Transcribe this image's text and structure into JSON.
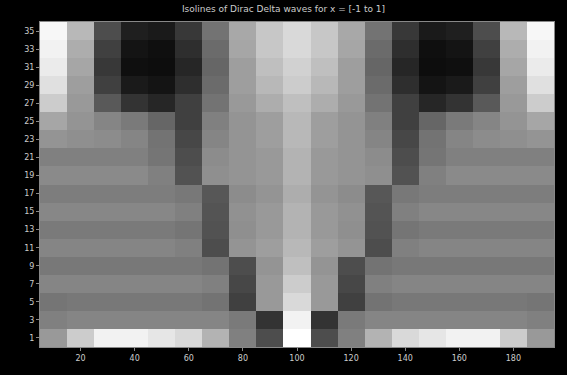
{
  "chart_data": {
    "type": "heatmap",
    "title": "Isolines of Dirac Delta waves for x = [-1 to 1]",
    "x": [
      10,
      20,
      30,
      40,
      50,
      60,
      70,
      80,
      90,
      100,
      110,
      120,
      130,
      140,
      150,
      160,
      170,
      180,
      190
    ],
    "y": [
      1,
      3,
      5,
      7,
      9,
      11,
      13,
      15,
      17,
      19,
      21,
      23,
      25,
      27,
      29,
      31,
      33,
      35
    ],
    "z": [
      [
        0.6,
        0.8,
        0.95,
        0.95,
        0.9,
        0.85,
        0.7,
        0.5,
        0.3,
        1.0,
        0.3,
        0.5,
        0.7,
        0.85,
        0.9,
        0.95,
        0.95,
        0.8,
        0.6
      ],
      [
        0.5,
        0.52,
        0.52,
        0.52,
        0.52,
        0.52,
        0.52,
        0.48,
        0.2,
        0.95,
        0.2,
        0.48,
        0.52,
        0.52,
        0.52,
        0.52,
        0.52,
        0.52,
        0.5
      ],
      [
        0.46,
        0.47,
        0.47,
        0.47,
        0.47,
        0.47,
        0.45,
        0.25,
        0.6,
        0.85,
        0.6,
        0.25,
        0.45,
        0.47,
        0.47,
        0.47,
        0.47,
        0.47,
        0.46
      ],
      [
        0.52,
        0.52,
        0.52,
        0.52,
        0.52,
        0.52,
        0.5,
        0.28,
        0.6,
        0.8,
        0.6,
        0.28,
        0.5,
        0.52,
        0.52,
        0.52,
        0.52,
        0.52,
        0.52
      ],
      [
        0.47,
        0.47,
        0.47,
        0.47,
        0.47,
        0.47,
        0.45,
        0.3,
        0.58,
        0.75,
        0.58,
        0.3,
        0.45,
        0.47,
        0.47,
        0.47,
        0.47,
        0.47,
        0.47
      ],
      [
        0.52,
        0.52,
        0.52,
        0.52,
        0.52,
        0.5,
        0.3,
        0.58,
        0.62,
        0.72,
        0.62,
        0.58,
        0.3,
        0.5,
        0.52,
        0.52,
        0.52,
        0.52,
        0.52
      ],
      [
        0.48,
        0.48,
        0.48,
        0.48,
        0.48,
        0.46,
        0.32,
        0.56,
        0.6,
        0.7,
        0.6,
        0.56,
        0.32,
        0.46,
        0.48,
        0.48,
        0.48,
        0.48,
        0.48
      ],
      [
        0.53,
        0.53,
        0.53,
        0.53,
        0.53,
        0.5,
        0.33,
        0.57,
        0.6,
        0.7,
        0.6,
        0.57,
        0.33,
        0.5,
        0.53,
        0.53,
        0.53,
        0.53,
        0.53
      ],
      [
        0.49,
        0.49,
        0.49,
        0.49,
        0.49,
        0.47,
        0.34,
        0.55,
        0.58,
        0.68,
        0.58,
        0.55,
        0.34,
        0.47,
        0.49,
        0.49,
        0.49,
        0.49,
        0.49
      ],
      [
        0.54,
        0.54,
        0.54,
        0.54,
        0.5,
        0.32,
        0.56,
        0.58,
        0.6,
        0.7,
        0.6,
        0.58,
        0.56,
        0.32,
        0.5,
        0.54,
        0.54,
        0.54,
        0.54
      ],
      [
        0.5,
        0.5,
        0.5,
        0.5,
        0.46,
        0.3,
        0.55,
        0.58,
        0.6,
        0.7,
        0.6,
        0.58,
        0.55,
        0.3,
        0.46,
        0.5,
        0.5,
        0.5,
        0.5
      ],
      [
        0.58,
        0.56,
        0.55,
        0.52,
        0.45,
        0.28,
        0.52,
        0.58,
        0.62,
        0.72,
        0.62,
        0.58,
        0.52,
        0.28,
        0.45,
        0.52,
        0.55,
        0.56,
        0.58
      ],
      [
        0.65,
        0.58,
        0.52,
        0.48,
        0.4,
        0.25,
        0.5,
        0.58,
        0.62,
        0.72,
        0.62,
        0.58,
        0.5,
        0.25,
        0.4,
        0.48,
        0.52,
        0.58,
        0.65
      ],
      [
        0.8,
        0.6,
        0.35,
        0.2,
        0.15,
        0.25,
        0.45,
        0.6,
        0.68,
        0.75,
        0.68,
        0.6,
        0.45,
        0.25,
        0.15,
        0.2,
        0.35,
        0.6,
        0.8
      ],
      [
        0.88,
        0.62,
        0.25,
        0.1,
        0.08,
        0.18,
        0.42,
        0.62,
        0.72,
        0.8,
        0.72,
        0.62,
        0.42,
        0.18,
        0.08,
        0.1,
        0.25,
        0.62,
        0.88
      ],
      [
        0.92,
        0.65,
        0.22,
        0.06,
        0.05,
        0.15,
        0.4,
        0.62,
        0.75,
        0.82,
        0.75,
        0.62,
        0.4,
        0.15,
        0.05,
        0.06,
        0.22,
        0.65,
        0.92
      ],
      [
        0.95,
        0.68,
        0.25,
        0.08,
        0.06,
        0.18,
        0.42,
        0.65,
        0.78,
        0.85,
        0.78,
        0.65,
        0.42,
        0.18,
        0.06,
        0.08,
        0.25,
        0.68,
        0.95
      ],
      [
        0.97,
        0.72,
        0.3,
        0.12,
        0.1,
        0.22,
        0.45,
        0.66,
        0.78,
        0.85,
        0.78,
        0.66,
        0.45,
        0.22,
        0.1,
        0.12,
        0.3,
        0.72,
        0.97
      ]
    ],
    "zlim": [
      0,
      1
    ],
    "xlim": [
      5,
      195
    ],
    "ylim": [
      0,
      36
    ],
    "xticks": [
      20,
      40,
      60,
      80,
      100,
      120,
      140,
      160,
      180
    ],
    "yticks": [
      1,
      3,
      5,
      7,
      9,
      11,
      13,
      15,
      17,
      19,
      21,
      23,
      25,
      27,
      29,
      31,
      33,
      35
    ],
    "grid": false
  }
}
